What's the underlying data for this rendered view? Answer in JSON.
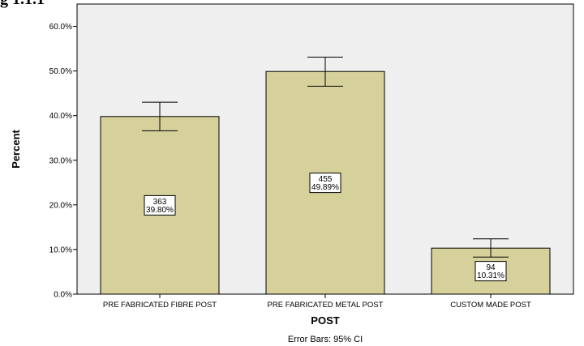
{
  "page": {
    "top_fragment": "g 1.1.1"
  },
  "chart_data": {
    "type": "bar",
    "title": "",
    "xlabel": "POST",
    "ylabel": "Percent",
    "ylim": [
      0,
      65
    ],
    "yticks": [
      "0.0%",
      "10.0%",
      "20.0%",
      "30.0%",
      "40.0%",
      "50.0%",
      "60.0%"
    ],
    "ytick_values": [
      0,
      10,
      20,
      30,
      40,
      50,
      60
    ],
    "categories": [
      "PRE FABRICATED FIBRE POST",
      "PRE FABRICATED METAL POST",
      "CUSTOM MADE POST"
    ],
    "values": [
      39.8,
      49.89,
      10.31
    ],
    "counts": [
      "363",
      "455",
      "94"
    ],
    "value_labels": [
      "39.80%",
      "49.89%",
      "10.31%"
    ],
    "error_low": [
      36.6,
      46.6,
      8.3
    ],
    "error_high": [
      43.0,
      53.1,
      12.4
    ],
    "footnote": "Error Bars: 95% CI",
    "colors": {
      "bar_fill": "#d6d19a",
      "plot_bg": "#efefef",
      "stroke": "#000000"
    }
  }
}
